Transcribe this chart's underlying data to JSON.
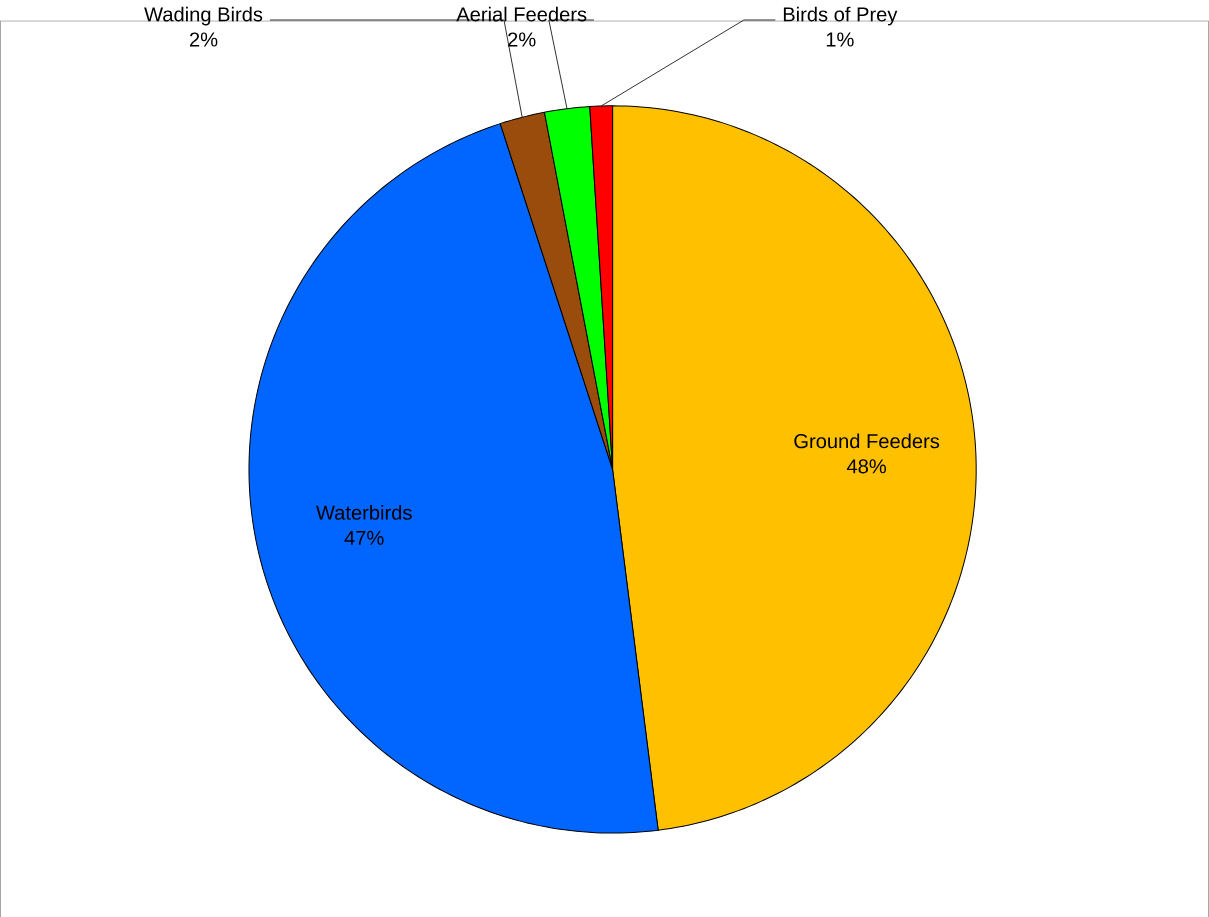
{
  "chart_data": {
    "type": "pie",
    "categories": [
      "Ground Feeders",
      "Waterbirds",
      "Wading Birds",
      "Aerial Feeders",
      "Birds of Prey"
    ],
    "values": [
      48,
      47,
      2,
      2,
      1
    ],
    "value_labels": [
      "48%",
      "47%",
      "2%",
      "2%",
      "1%"
    ],
    "colors": [
      "#ffc000",
      "#0066ff",
      "#994c0c",
      "#00ff00",
      "#ff0000"
    ]
  }
}
